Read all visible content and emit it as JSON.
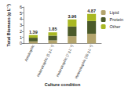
{
  "chart_data": {
    "type": "bar",
    "stacked": true,
    "x_label": "Culture condition",
    "y_label": "Total Biomass (g L⁻¹)",
    "categories": [
      "Autotrophic",
      "Heterotrophic (5 g L⁻¹)",
      "Heterotrophic (7 g L⁻¹)",
      "Heterotrophic (10 g L⁻¹)"
    ],
    "series": [
      {
        "name": "Lipid",
        "color": "#b3a46c",
        "values": [
          0.35,
          0.5,
          1.2,
          1.6
        ]
      },
      {
        "name": "Protein",
        "color": "#4b5a2a",
        "values": [
          0.6,
          0.8,
          1.6,
          2.1
        ]
      },
      {
        "name": "Other",
        "color": "#a9b823",
        "values": [
          0.44,
          0.55,
          1.16,
          1.17
        ]
      }
    ],
    "totals": [
      1.39,
      1.85,
      3.96,
      4.87
    ],
    "ylim": [
      0,
      6
    ],
    "yticks": [
      0,
      1,
      2,
      3,
      4,
      5,
      6
    ],
    "grid": false,
    "legend": "right"
  }
}
